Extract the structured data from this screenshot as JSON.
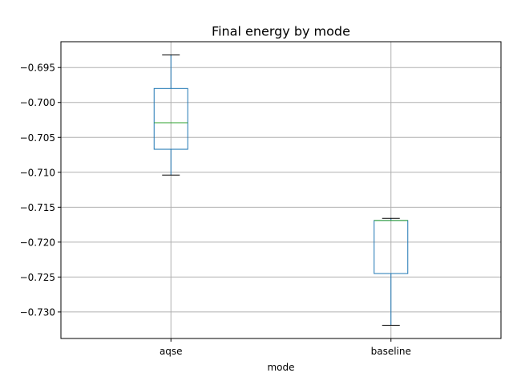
{
  "chart_data": {
    "type": "box",
    "title": "Final energy by mode",
    "xlabel": "mode",
    "ylabel": "",
    "categories": [
      "aqse",
      "baseline"
    ],
    "ylim": [
      -0.7338,
      -0.6913
    ],
    "yticks": [
      -0.695,
      -0.7,
      -0.705,
      -0.71,
      -0.715,
      -0.72,
      -0.725,
      -0.73
    ],
    "ytick_labels": [
      "−0.695",
      "−0.700",
      "−0.705",
      "−0.710",
      "−0.715",
      "−0.720",
      "−0.725",
      "−0.730"
    ],
    "grid": true,
    "boxes": [
      {
        "category": "aqse",
        "whisker_low": -0.7104,
        "q1": -0.7067,
        "median": -0.7029,
        "q3": -0.698,
        "whisker_high": -0.6932
      },
      {
        "category": "baseline",
        "whisker_low": -0.7319,
        "q1": -0.7245,
        "median": -0.7169,
        "q3": -0.7169,
        "whisker_high": -0.7166
      }
    ],
    "colors": {
      "box": "#1f77b4",
      "median": "#2ca02c",
      "whisker_cap": "#000000",
      "grid": "#b0b0b0",
      "axes": "#000000"
    }
  }
}
